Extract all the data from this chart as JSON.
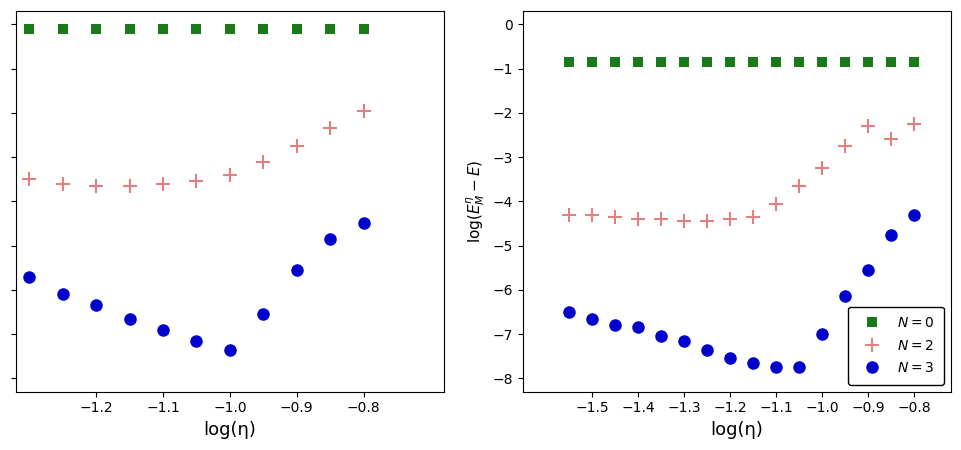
{
  "left": {
    "green_x": [
      -1.3,
      -1.25,
      -1.2,
      -1.15,
      -1.1,
      -1.05,
      -1.0,
      -0.95,
      -0.9,
      -0.85,
      -0.8
    ],
    "green_y": [
      -0.1,
      -0.1,
      -0.1,
      -0.1,
      -0.1,
      -0.1,
      -0.1,
      -0.1,
      -0.1,
      -0.1,
      -0.1
    ],
    "red_x": [
      -1.3,
      -1.25,
      -1.2,
      -1.15,
      -1.1,
      -1.05,
      -1.0,
      -0.95,
      -0.9,
      -0.85,
      -0.8
    ],
    "red_y": [
      -3.5,
      -3.6,
      -3.65,
      -3.65,
      -3.6,
      -3.55,
      -3.4,
      -3.1,
      -2.75,
      -2.35,
      -1.95
    ],
    "blue_x": [
      -1.3,
      -1.25,
      -1.2,
      -1.15,
      -1.1,
      -1.05,
      -1.0,
      -0.95,
      -0.9,
      -0.85,
      -0.8
    ],
    "blue_y": [
      -5.7,
      -6.1,
      -6.35,
      -6.65,
      -6.9,
      -7.15,
      -7.35,
      -6.55,
      -5.55,
      -4.85,
      -4.5
    ],
    "xlim": [
      -1.32,
      -0.68
    ],
    "ylim": [
      -8.3,
      0.3
    ],
    "xticks": [
      -1.2,
      -1.1,
      -1.0,
      -0.9,
      -0.8
    ],
    "xlabel": "log(η)"
  },
  "right": {
    "green_x": [
      -1.55,
      -1.5,
      -1.45,
      -1.4,
      -1.35,
      -1.3,
      -1.25,
      -1.2,
      -1.15,
      -1.1,
      -1.05,
      -1.0,
      -0.95,
      -0.9,
      -0.85,
      -0.8
    ],
    "green_y": [
      -0.85,
      -0.85,
      -0.85,
      -0.85,
      -0.85,
      -0.85,
      -0.85,
      -0.85,
      -0.85,
      -0.85,
      -0.85,
      -0.85,
      -0.85,
      -0.85,
      -0.85,
      -0.85
    ],
    "red_x": [
      -1.55,
      -1.5,
      -1.45,
      -1.4,
      -1.35,
      -1.3,
      -1.25,
      -1.2,
      -1.15,
      -1.1,
      -1.05,
      -1.0,
      -0.95,
      -0.9,
      -0.85,
      -0.8
    ],
    "red_y": [
      -4.3,
      -4.3,
      -4.35,
      -4.4,
      -4.4,
      -4.45,
      -4.45,
      -4.4,
      -4.35,
      -4.05,
      -3.65,
      -3.25,
      -2.75,
      -2.3,
      -2.6,
      -2.25
    ],
    "blue_x": [
      -1.55,
      -1.5,
      -1.45,
      -1.4,
      -1.35,
      -1.3,
      -1.25,
      -1.2,
      -1.15,
      -1.1,
      -1.05,
      -1.0,
      -0.95,
      -0.9,
      -0.85,
      -0.8
    ],
    "blue_y": [
      -6.5,
      -6.65,
      -6.8,
      -6.85,
      -7.05,
      -7.15,
      -7.35,
      -7.55,
      -7.65,
      -7.75,
      -7.75,
      -7.0,
      -6.15,
      -5.55,
      -4.75,
      -4.3
    ],
    "xlim": [
      -1.65,
      -0.72
    ],
    "ylim": [
      -8.3,
      0.3
    ],
    "yticks": [
      0,
      -1,
      -2,
      -3,
      -4,
      -5,
      -6,
      -7,
      -8
    ],
    "xticks": [
      -1.5,
      -1.4,
      -1.3,
      -1.2,
      -1.1,
      -1.0,
      -0.9,
      -0.8
    ],
    "xlabel": "log(η)",
    "ylabel": "log(E_M - E)"
  },
  "green_color": "#1a7a1a",
  "red_color": "#e08080",
  "blue_color": "#0000cc",
  "marker_green": "s",
  "marker_red": "+",
  "marker_blue": "o",
  "bg_color": "#ffffff"
}
